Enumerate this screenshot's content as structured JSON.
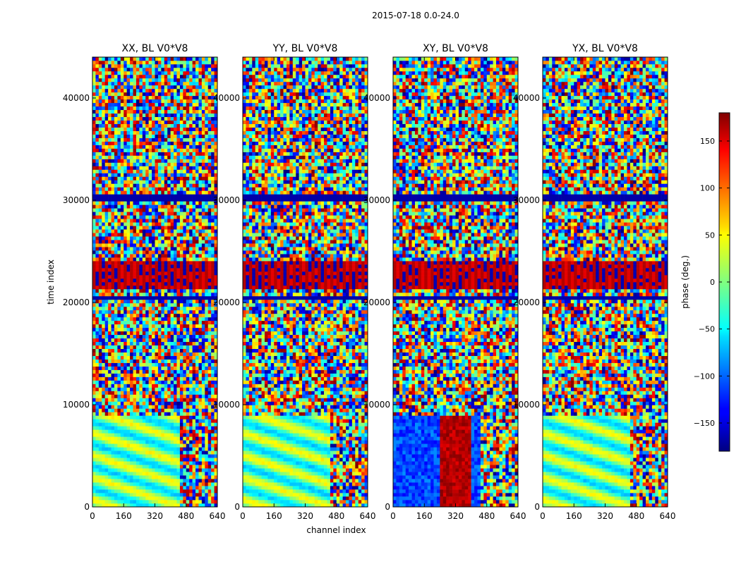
{
  "figure": {
    "suptitle": "2015-07-18 0.0-24.0"
  },
  "chart_data": [
    {
      "type": "heatmap",
      "title": "XX, BL V0*V8",
      "xlabel": "",
      "ylabel": "time index",
      "xlim": [
        0,
        640
      ],
      "ylim": [
        0,
        44000
      ],
      "xticks": [
        0,
        160,
        320,
        480,
        640
      ],
      "yticks": [
        0,
        10000,
        20000,
        30000,
        40000
      ],
      "colormap": "jet",
      "clim": [
        -180,
        180
      ],
      "blank_row_bands": [
        [
          10500,
          10700
        ],
        [
          20200,
          20600
        ],
        [
          29900,
          30500
        ]
      ],
      "saturated_band": [
        21200,
        24000
      ]
    },
    {
      "type": "heatmap",
      "title": "YY, BL V0*V8",
      "xlabel": "channel index",
      "ylabel": "",
      "xlim": [
        0,
        640
      ],
      "ylim": [
        0,
        44000
      ],
      "xticks": [
        0,
        160,
        320,
        480,
        640
      ],
      "yticks": [
        0,
        10000,
        20000,
        30000,
        40000
      ],
      "colormap": "jet",
      "clim": [
        -180,
        180
      ],
      "blank_row_bands": [
        [
          10500,
          10700
        ],
        [
          20200,
          20600
        ],
        [
          29900,
          30500
        ]
      ],
      "saturated_band": [
        21200,
        24000
      ]
    },
    {
      "type": "heatmap",
      "title": "XY, BL V0*V8",
      "xlabel": "",
      "ylabel": "",
      "xlim": [
        0,
        640
      ],
      "ylim": [
        0,
        44000
      ],
      "xticks": [
        0,
        160,
        320,
        480,
        640
      ],
      "yticks": [
        0,
        10000,
        20000,
        30000,
        40000
      ],
      "colormap": "jet",
      "clim": [
        -180,
        180
      ],
      "blank_row_bands": [
        [
          10500,
          10700
        ],
        [
          20200,
          20600
        ],
        [
          29900,
          30500
        ]
      ],
      "saturated_band": [
        21200,
        24000
      ]
    },
    {
      "type": "heatmap",
      "title": "YX, BL V0*V8",
      "xlabel": "",
      "ylabel": "",
      "xlim": [
        0,
        640
      ],
      "ylim": [
        0,
        44000
      ],
      "xticks": [
        0,
        160,
        320,
        480,
        640
      ],
      "yticks": [
        0,
        10000,
        20000,
        30000,
        40000
      ],
      "colormap": "jet",
      "clim": [
        -180,
        180
      ],
      "blank_row_bands": [
        [
          10500,
          10700
        ],
        [
          20200,
          20600
        ],
        [
          29900,
          30500
        ]
      ],
      "saturated_band": [
        21200,
        24000
      ]
    }
  ],
  "colorbar": {
    "label": "phase (deg.)",
    "range": [
      -180,
      180
    ],
    "ticks": [
      -150,
      -100,
      -50,
      0,
      50,
      100,
      150
    ],
    "tick_labels": [
      "−150",
      "−100",
      "−50",
      "0",
      "50",
      "100",
      "150"
    ],
    "colormap": "jet"
  }
}
